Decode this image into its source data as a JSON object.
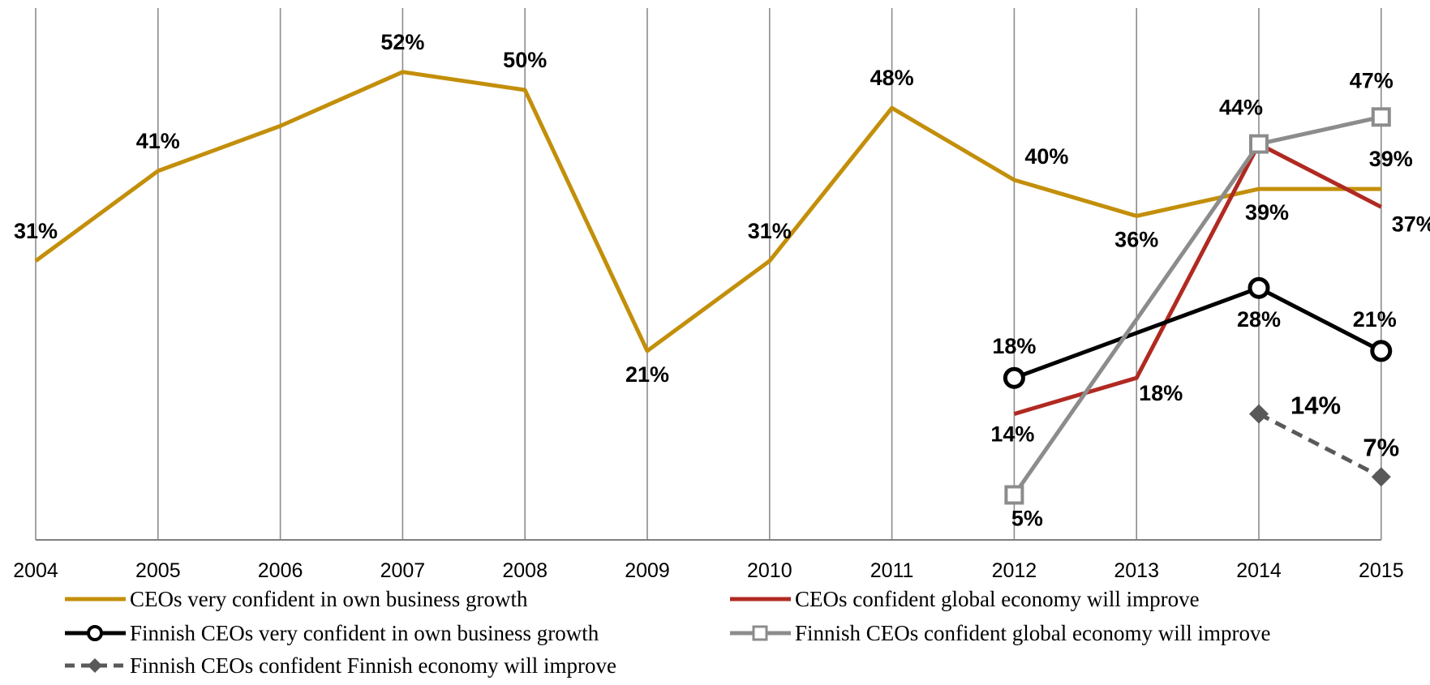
{
  "chart_data": {
    "type": "line",
    "x": [
      "2004",
      "2005",
      "2006",
      "2007",
      "2008",
      "2009",
      "2010",
      "2011",
      "2012",
      "2013",
      "2014",
      "2015"
    ],
    "ylim": [
      0,
      56
    ],
    "grid": "vertical lines at each year",
    "legend_position": "bottom",
    "title": "",
    "xlabel": "",
    "ylabel": "",
    "series": [
      {
        "name": "CEOs very confident in own business growth",
        "color": "#C38F0A",
        "marker": "none",
        "dash": "solid",
        "values": [
          31,
          41,
          46,
          52,
          50,
          21,
          31,
          48,
          40,
          36,
          39,
          39
        ],
        "labels": [
          "31%",
          "41%",
          null,
          "52%",
          "50%",
          "21%",
          "31%",
          "48%",
          "40%",
          "36%",
          "39%",
          "39%"
        ]
      },
      {
        "name": "CEOs confident global economy will improve",
        "color": "#B02A21",
        "marker": "none",
        "dash": "solid",
        "values": [
          null,
          null,
          null,
          null,
          null,
          null,
          null,
          null,
          14,
          18,
          44,
          37
        ],
        "labels": [
          null,
          null,
          null,
          null,
          null,
          null,
          null,
          null,
          "14%",
          "18%",
          null,
          "37%"
        ]
      },
      {
        "name": "Finnish CEOs very confident in own business growth",
        "color": "#000000",
        "marker": "circle",
        "dash": "solid",
        "values": [
          null,
          null,
          null,
          null,
          null,
          null,
          null,
          null,
          18,
          null,
          28,
          21
        ],
        "labels": [
          null,
          null,
          null,
          null,
          null,
          null,
          null,
          null,
          "18%",
          null,
          "28%",
          "21%"
        ]
      },
      {
        "name": "Finnish CEOs confident global economy will improve",
        "color": "#8C8C8C",
        "marker": "square",
        "dash": "solid",
        "values": [
          null,
          null,
          null,
          null,
          null,
          null,
          null,
          null,
          5,
          null,
          44,
          47
        ],
        "labels": [
          null,
          null,
          null,
          null,
          null,
          null,
          null,
          null,
          "5%",
          null,
          "44%",
          "47%"
        ]
      },
      {
        "name": "Finnish CEOs confident Finnish economy will improve",
        "color": "#595959",
        "marker": "diamond",
        "dash": "dashed",
        "values": [
          null,
          null,
          null,
          null,
          null,
          null,
          null,
          null,
          null,
          null,
          14,
          7
        ],
        "labels": [
          null,
          null,
          null,
          null,
          null,
          null,
          null,
          null,
          null,
          null,
          "14%",
          "7%"
        ]
      }
    ]
  }
}
